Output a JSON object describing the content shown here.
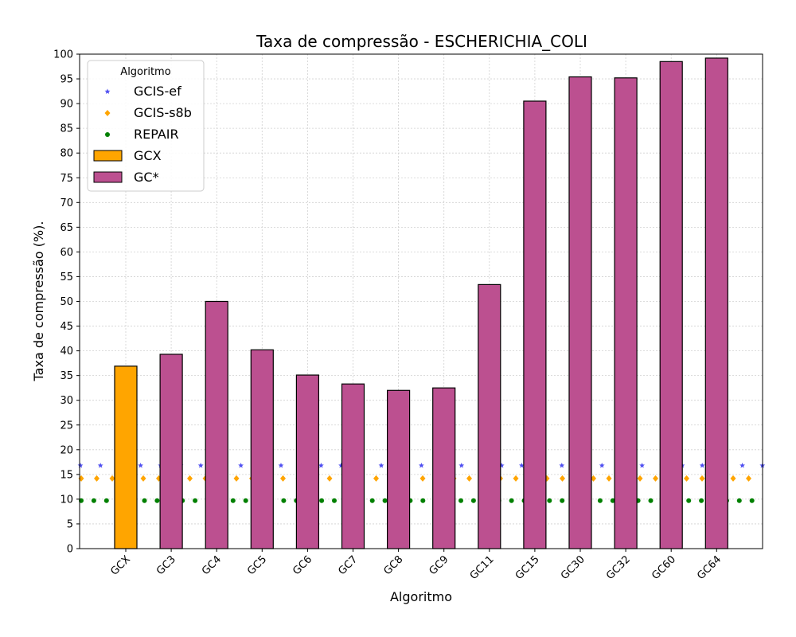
{
  "chart_data": {
    "type": "bar",
    "title": "Taxa de compressão -  ESCHERICHIA_COLI",
    "xlabel": "Algoritmo",
    "ylabel": "Taxa de compressão (%).",
    "ylim": [
      0,
      100
    ],
    "yticks": [
      0,
      5,
      10,
      15,
      20,
      25,
      30,
      35,
      40,
      45,
      50,
      55,
      60,
      65,
      70,
      75,
      80,
      85,
      90,
      95,
      100
    ],
    "grid": true,
    "legend_title": "Algoritmo",
    "legend_position": "top-left",
    "categories": [
      "GCX",
      "GC3",
      "GC4",
      "GC5",
      "GC6",
      "GC7",
      "GC8",
      "GC9",
      "GC11",
      "GC15",
      "GC30",
      "GC32",
      "GC60",
      "GC64"
    ],
    "bars": [
      {
        "name": "GCX",
        "color": "#ffa500",
        "values": [
          36.9,
          null,
          null,
          null,
          null,
          null,
          null,
          null,
          null,
          null,
          null,
          null,
          null,
          null
        ]
      },
      {
        "name": "GC*",
        "color": "#bc5090",
        "values": [
          null,
          39.3,
          50.0,
          40.2,
          35.1,
          33.3,
          32.0,
          32.5,
          53.4,
          90.5,
          95.4,
          95.2,
          98.5,
          99.2
        ]
      }
    ],
    "reference_lines": [
      {
        "name": "GCIS-ef",
        "value": 16.8,
        "color": "#3333ee",
        "marker": "star"
      },
      {
        "name": "GCIS-s8b",
        "value": 14.2,
        "color": "#ffa500",
        "marker": "diamond"
      },
      {
        "name": "REPAIR",
        "value": 9.7,
        "color": "#008000",
        "marker": "circle"
      }
    ]
  }
}
